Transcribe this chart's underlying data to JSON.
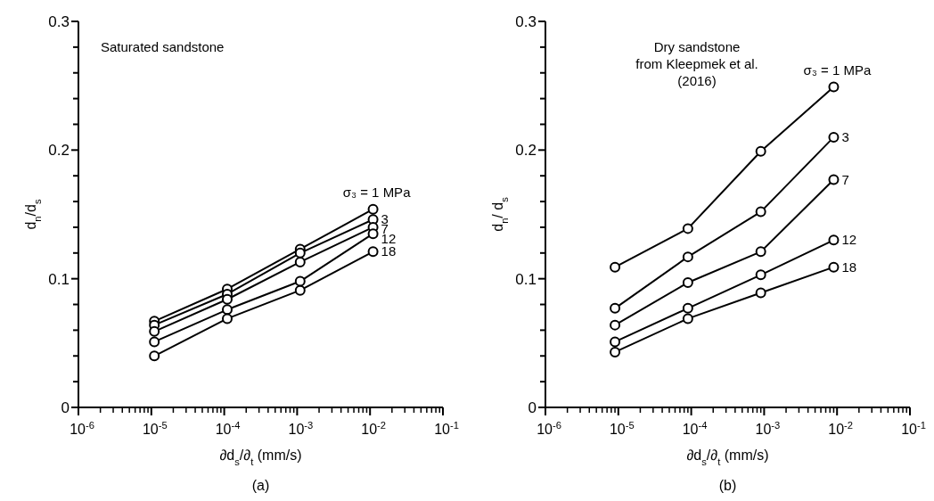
{
  "chart_data": [
    {
      "type": "line",
      "xlabel": "∂d$_{s}$/∂$_{t}$ (mm/s)",
      "ylabel": "d$_{n}$/d$_{s}$",
      "log": "x",
      "marker": "circle",
      "line_style": "solid",
      "grid": false,
      "annotations": [
        "Saturated sandstone",
        "(a)"
      ],
      "x": [
        1.1e-05,
        0.00011,
        0.0011,
        0.011
      ],
      "xlim": [
        1e-06,
        0.1
      ],
      "xticks": [
        {
          "value": 1e-06,
          "label": "10$^{-6}$"
        },
        {
          "value": 2e-06,
          "label": null
        },
        {
          "value": 3e-06,
          "label": null
        },
        {
          "value": 4e-06,
          "label": null
        },
        {
          "value": 5e-06,
          "label": null
        },
        {
          "value": 6e-06,
          "label": null
        },
        {
          "value": 7e-06,
          "label": null
        },
        {
          "value": 8e-06,
          "label": null
        },
        {
          "value": 9e-06,
          "label": null
        },
        {
          "value": 1e-05,
          "label": "10$^{-5}$"
        },
        {
          "value": 2e-05,
          "label": null
        },
        {
          "value": 3e-05,
          "label": null
        },
        {
          "value": 4e-05,
          "label": null
        },
        {
          "value": 5e-05,
          "label": null
        },
        {
          "value": 6e-05,
          "label": null
        },
        {
          "value": 7e-05,
          "label": null
        },
        {
          "value": 8e-05,
          "label": null
        },
        {
          "value": 9e-05,
          "label": null
        },
        {
          "value": 0.0001,
          "label": "10$^{-4}$"
        },
        {
          "value": 0.0002,
          "label": null
        },
        {
          "value": 0.0003,
          "label": null
        },
        {
          "value": 0.0004,
          "label": null
        },
        {
          "value": 0.0005,
          "label": null
        },
        {
          "value": 0.0006,
          "label": null
        },
        {
          "value": 0.0007,
          "label": null
        },
        {
          "value": 0.0008,
          "label": null
        },
        {
          "value": 0.0009,
          "label": null
        },
        {
          "value": 0.001,
          "label": "10$^{-3}$"
        },
        {
          "value": 0.002,
          "label": null
        },
        {
          "value": 0.003,
          "label": null
        },
        {
          "value": 0.004,
          "label": null
        },
        {
          "value": 0.005,
          "label": null
        },
        {
          "value": 0.006,
          "label": null
        },
        {
          "value": 0.007,
          "label": null
        },
        {
          "value": 0.008,
          "label": null
        },
        {
          "value": 0.009,
          "label": null
        },
        {
          "value": 0.01,
          "label": "10$^{-2}$"
        },
        {
          "value": 0.02,
          "label": null
        },
        {
          "value": 0.03,
          "label": null
        },
        {
          "value": 0.04,
          "label": null
        },
        {
          "value": 0.05,
          "label": null
        },
        {
          "value": 0.06,
          "label": null
        },
        {
          "value": 0.07,
          "label": null
        },
        {
          "value": 0.08,
          "label": null
        },
        {
          "value": 0.09,
          "label": null
        },
        {
          "value": 0.1,
          "label": "10$^{-1}$"
        }
      ],
      "ylim": [
        0,
        0.3
      ],
      "yticks": [
        0,
        {
          "value": 0.02,
          "label": null
        },
        {
          "value": 0.04,
          "label": null
        },
        {
          "value": 0.06,
          "label": null
        },
        {
          "value": 0.08,
          "label": null
        },
        0.1,
        {
          "value": 0.12,
          "label": null
        },
        {
          "value": 0.14,
          "label": null
        },
        {
          "value": 0.16,
          "label": null
        },
        {
          "value": 0.18,
          "label": null
        },
        0.2,
        {
          "value": 0.22,
          "label": null
        },
        {
          "value": 0.24,
          "label": null
        },
        {
          "value": 0.26,
          "label": null
        },
        {
          "value": 0.28,
          "label": null
        },
        0.3
      ],
      "series": [
        {
          "name": "σ₃ = 1 MPa",
          "color": "#000000",
          "values": [
            0.067,
            0.092,
            0.123,
            0.154
          ]
        },
        {
          "name": "3",
          "color": "#000000",
          "values": [
            0.064,
            0.088,
            0.12,
            0.146
          ]
        },
        {
          "name": "7",
          "color": "#000000",
          "values": [
            0.059,
            0.084,
            0.113,
            0.14
          ]
        },
        {
          "name": "12",
          "color": "#000000",
          "values": [
            0.051,
            0.076,
            0.098,
            0.135
          ]
        },
        {
          "name": "18",
          "color": "#000000",
          "values": [
            0.04,
            0.069,
            0.091,
            0.121
          ]
        }
      ]
    },
    {
      "type": "line",
      "xlabel": "∂d$_{s}$/∂$_{t}$ (mm/s)",
      "ylabel": "d$_{n}$/ d$_{s}$",
      "log": "x",
      "marker": "circle",
      "line_style": "solid",
      "grid": false,
      "annotations": [
        "Dry sandstone\nfrom Kleepmek et al.\n(2016)",
        "(b)"
      ],
      "x": [
        9e-06,
        9e-05,
        0.0009,
        0.009
      ],
      "xlim": [
        1e-06,
        0.1
      ],
      "xticks": [
        {
          "value": 1e-06,
          "label": "10$^{-6}$"
        },
        {
          "value": 2e-06,
          "label": null
        },
        {
          "value": 3e-06,
          "label": null
        },
        {
          "value": 4e-06,
          "label": null
        },
        {
          "value": 5e-06,
          "label": null
        },
        {
          "value": 6e-06,
          "label": null
        },
        {
          "value": 7e-06,
          "label": null
        },
        {
          "value": 8e-06,
          "label": null
        },
        {
          "value": 9e-06,
          "label": null
        },
        {
          "value": 1e-05,
          "label": "10$^{-5}$"
        },
        {
          "value": 2e-05,
          "label": null
        },
        {
          "value": 3e-05,
          "label": null
        },
        {
          "value": 4e-05,
          "label": null
        },
        {
          "value": 5e-05,
          "label": null
        },
        {
          "value": 6e-05,
          "label": null
        },
        {
          "value": 7e-05,
          "label": null
        },
        {
          "value": 8e-05,
          "label": null
        },
        {
          "value": 9e-05,
          "label": null
        },
        {
          "value": 0.0001,
          "label": "10$^{-4}$"
        },
        {
          "value": 0.0002,
          "label": null
        },
        {
          "value": 0.0003,
          "label": null
        },
        {
          "value": 0.0004,
          "label": null
        },
        {
          "value": 0.0005,
          "label": null
        },
        {
          "value": 0.0006,
          "label": null
        },
        {
          "value": 0.0007,
          "label": null
        },
        {
          "value": 0.0008,
          "label": null
        },
        {
          "value": 0.0009,
          "label": null
        },
        {
          "value": 0.001,
          "label": "10$^{-3}$"
        },
        {
          "value": 0.002,
          "label": null
        },
        {
          "value": 0.003,
          "label": null
        },
        {
          "value": 0.004,
          "label": null
        },
        {
          "value": 0.005,
          "label": null
        },
        {
          "value": 0.006,
          "label": null
        },
        {
          "value": 0.007,
          "label": null
        },
        {
          "value": 0.008,
          "label": null
        },
        {
          "value": 0.009,
          "label": null
        },
        {
          "value": 0.01,
          "label": "10$^{-2}$"
        },
        {
          "value": 0.02,
          "label": null
        },
        {
          "value": 0.03,
          "label": null
        },
        {
          "value": 0.04,
          "label": null
        },
        {
          "value": 0.05,
          "label": null
        },
        {
          "value": 0.06,
          "label": null
        },
        {
          "value": 0.07,
          "label": null
        },
        {
          "value": 0.08,
          "label": null
        },
        {
          "value": 0.09,
          "label": null
        },
        {
          "value": 0.1,
          "label": "10$^{-1}$"
        }
      ],
      "ylim": [
        0,
        0.3
      ],
      "yticks": [
        0,
        {
          "value": 0.02,
          "label": null
        },
        {
          "value": 0.04,
          "label": null
        },
        {
          "value": 0.06,
          "label": null
        },
        {
          "value": 0.08,
          "label": null
        },
        0.1,
        {
          "value": 0.12,
          "label": null
        },
        {
          "value": 0.14,
          "label": null
        },
        {
          "value": 0.16,
          "label": null
        },
        {
          "value": 0.18,
          "label": null
        },
        0.2,
        {
          "value": 0.22,
          "label": null
        },
        {
          "value": 0.24,
          "label": null
        },
        {
          "value": 0.26,
          "label": null
        },
        {
          "value": 0.28,
          "label": null
        },
        0.3
      ],
      "series": [
        {
          "name": "σ₃ = 1 MPa",
          "color": "#000000",
          "values": [
            0.109,
            0.139,
            0.199,
            0.249
          ]
        },
        {
          "name": "3",
          "color": "#000000",
          "values": [
            0.077,
            0.117,
            0.152,
            0.21
          ]
        },
        {
          "name": "7",
          "color": "#000000",
          "values": [
            0.064,
            0.097,
            0.121,
            0.177
          ]
        },
        {
          "name": "12",
          "color": "#000000",
          "values": [
            0.051,
            0.077,
            0.103,
            0.13
          ]
        },
        {
          "name": "18",
          "color": "#000000",
          "values": [
            0.043,
            0.069,
            0.089,
            0.109
          ]
        }
      ]
    }
  ]
}
